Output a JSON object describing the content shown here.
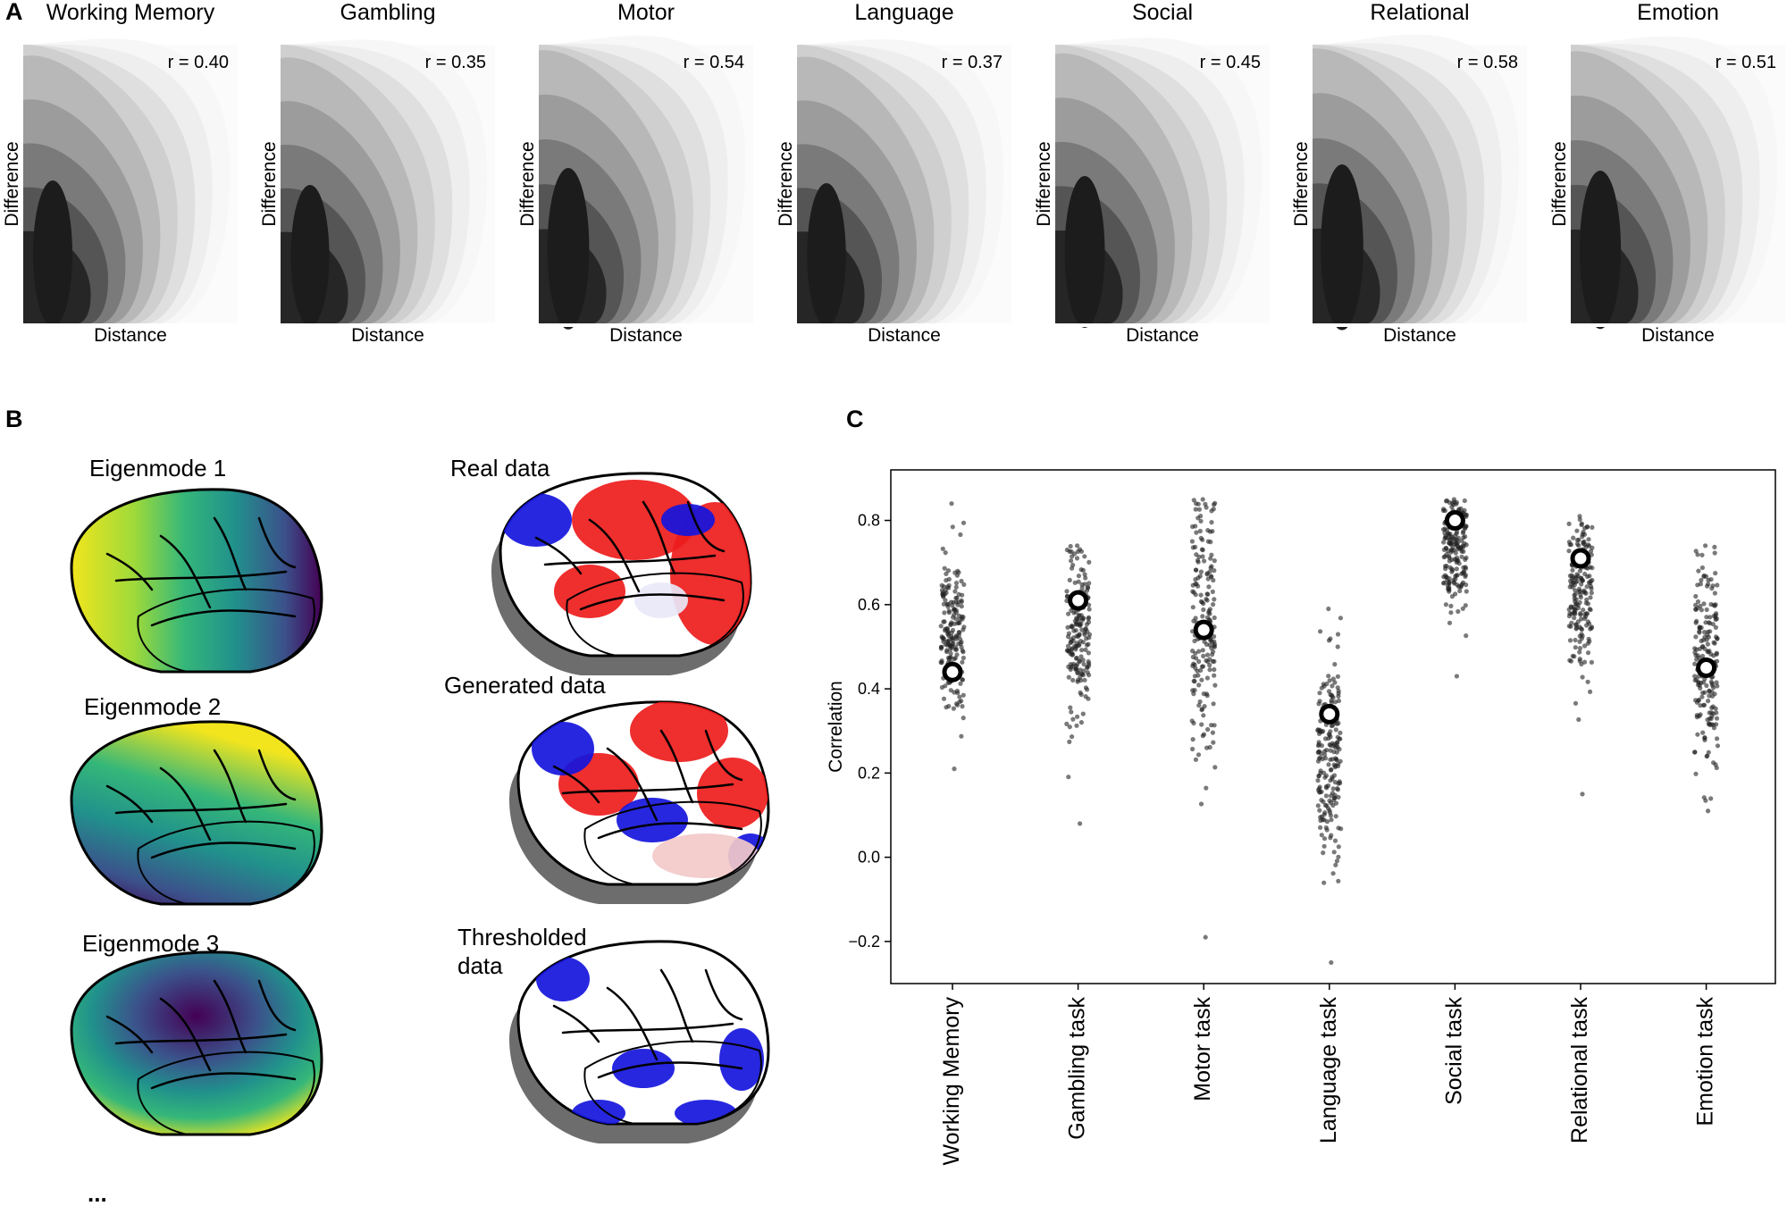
{
  "panel_a": {
    "letter": "A",
    "xlabel": "Distance",
    "ylabel": "Difference",
    "plots": [
      {
        "title": "Working Memory",
        "r_label": "r = 0.40",
        "r": 0.4
      },
      {
        "title": "Gambling",
        "r_label": "r = 0.35",
        "r": 0.35
      },
      {
        "title": "Motor",
        "r_label": "r = 0.54",
        "r": 0.54
      },
      {
        "title": "Language",
        "r_label": "r = 0.37",
        "r": 0.37
      },
      {
        "title": "Social",
        "r_label": "r = 0.45",
        "r": 0.45
      },
      {
        "title": "Relational",
        "r_label": "r = 0.58",
        "r": 0.58
      },
      {
        "title": "Emotion",
        "r_label": "r = 0.51",
        "r": 0.51
      }
    ]
  },
  "panel_b": {
    "letter": "B",
    "eigenmodes": [
      "Eigenmode 1",
      "Eigenmode 2",
      "Eigenmode 3"
    ],
    "data_labels": [
      "Real data",
      "Generated data",
      "Thresholded",
      "data"
    ],
    "ellipsis": "..."
  },
  "colors": {
    "viridis_yellow": "#f2e51d",
    "viridis_green": "#35b779",
    "viridis_teal": "#21918c",
    "viridis_blue": "#3b528b",
    "viridis_purple": "#440154",
    "pos_red": "#ee1c1c",
    "neg_blue": "#1515dd",
    "point": "#222222",
    "mean_marker_edge": "#000000"
  },
  "chart_data": {
    "type": "scatter",
    "letter": "C",
    "title": "",
    "xlabel": "",
    "ylabel": "Correlation",
    "ylim": [
      -0.3,
      0.92
    ],
    "yticks": [
      -0.2,
      0.0,
      0.2,
      0.4,
      0.6,
      0.8
    ],
    "ytick_labels": [
      "−0.2",
      "0.0",
      "0.2",
      "0.4",
      "0.6",
      "0.8"
    ],
    "categories": [
      "Working Memory",
      "Gambling task",
      "Motor task",
      "Language task",
      "Social task",
      "Relational task",
      "Emotion task"
    ],
    "series": [
      {
        "name": "Working Memory",
        "mean": 0.44,
        "min": 0.21,
        "max": 0.84,
        "center": 0.53,
        "spread": 0.1,
        "n": 190
      },
      {
        "name": "Gambling task",
        "mean": 0.61,
        "min": 0.08,
        "max": 0.74,
        "center": 0.53,
        "spread": 0.1,
        "n": 190
      },
      {
        "name": "Motor task",
        "mean": 0.54,
        "min": -0.19,
        "max": 0.85,
        "center": 0.55,
        "spread": 0.16,
        "n": 190
      },
      {
        "name": "Language task",
        "mean": 0.34,
        "min": -0.25,
        "max": 0.59,
        "center": 0.23,
        "spread": 0.12,
        "n": 190
      },
      {
        "name": "Social task",
        "mean": 0.8,
        "min": 0.43,
        "max": 0.85,
        "center": 0.73,
        "spread": 0.07,
        "n": 190
      },
      {
        "name": "Relational task",
        "mean": 0.71,
        "min": 0.15,
        "max": 0.81,
        "center": 0.61,
        "spread": 0.1,
        "n": 190
      },
      {
        "name": "Emotion task",
        "mean": 0.45,
        "min": 0.11,
        "max": 0.74,
        "center": 0.45,
        "spread": 0.13,
        "n": 190
      }
    ]
  }
}
